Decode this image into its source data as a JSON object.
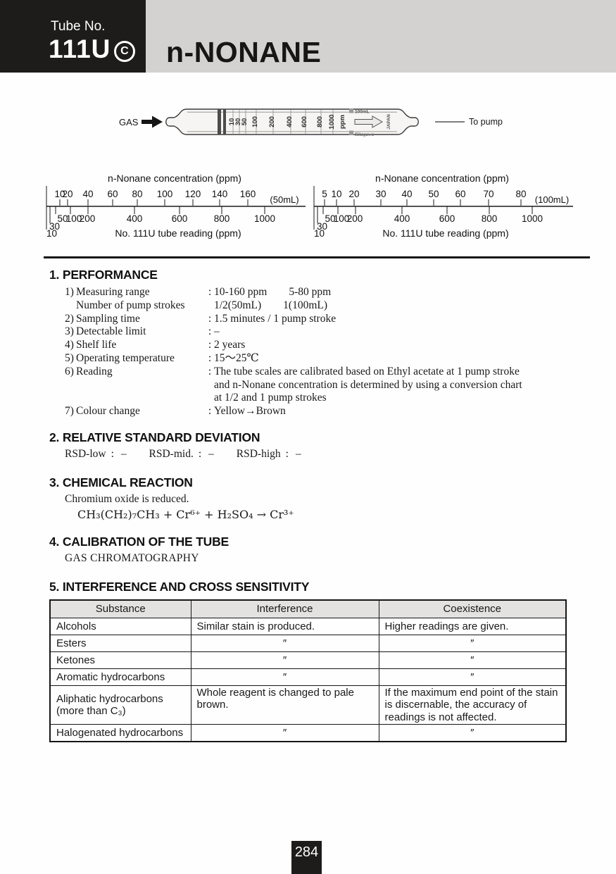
{
  "colors": {
    "header_band": "#d4d2d0",
    "black_box": "#1d1c1b",
    "table_header_bg": "#e3e2e0",
    "ink": "#1a1a1a"
  },
  "header": {
    "tube_label": "Tube No.",
    "tube_number": "111U",
    "registered_mark": "C",
    "title": "n-NONANE"
  },
  "tube_diagram": {
    "gas_label": "GAS",
    "to_pump_label": "To pump",
    "scale_marks": [
      [
        "10",
        176
      ],
      [
        "30",
        185
      ],
      [
        "50",
        194
      ],
      [
        "100",
        209
      ],
      [
        "200",
        233
      ],
      [
        "400",
        258
      ],
      [
        "600",
        279
      ],
      [
        "800",
        301
      ],
      [
        "1000",
        318
      ]
    ],
    "scale_unit": [
      "ppm",
      333
    ],
    "volume_text": "100mL",
    "country_text": "JAPAN",
    "brand_text": "Kitagawa"
  },
  "conversion_charts": [
    {
      "title": "n-Nonane concentration (ppm)",
      "volume_label": "(50mL)",
      "bottom_title": "No. 111U tube reading (ppm)",
      "top_ticks": [
        [
          "10",
          27
        ],
        [
          "20",
          38
        ],
        [
          "40",
          67
        ],
        [
          "60",
          102
        ],
        [
          "80",
          137
        ],
        [
          "100",
          176
        ],
        [
          "120",
          216
        ],
        [
          "140",
          254
        ],
        [
          "160",
          294
        ]
      ],
      "bottom_ticks": [
        [
          "10",
          8,
          "low",
          8
        ],
        [
          "30",
          13,
          "mid",
          12
        ],
        [
          "50",
          21,
          "main",
          31
        ],
        [
          "100",
          42,
          "main",
          47
        ],
        [
          "200",
          67,
          "main",
          66
        ],
        [
          "400",
          133,
          "main",
          133
        ],
        [
          "600",
          197,
          "main",
          197
        ],
        [
          "800",
          257,
          "main",
          257
        ],
        [
          "1000",
          318,
          "main",
          318
        ]
      ]
    },
    {
      "title": "n-Nonane concentration (ppm)",
      "volume_label": "(100mL)",
      "bottom_title": "No. 111U tube reading (ppm)",
      "top_ticks": [
        [
          "5",
          23
        ],
        [
          "10",
          40
        ],
        [
          "20",
          65
        ],
        [
          "30",
          103
        ],
        [
          "40",
          140
        ],
        [
          "50",
          178
        ],
        [
          "60",
          216
        ],
        [
          "70",
          256
        ],
        [
          "80",
          302
        ]
      ],
      "bottom_ticks": [
        [
          "10",
          8,
          "low",
          8
        ],
        [
          "30",
          13,
          "mid",
          12
        ],
        [
          "50",
          21,
          "main",
          31
        ],
        [
          "100",
          42,
          "main",
          47
        ],
        [
          "200",
          67,
          "main",
          66
        ],
        [
          "400",
          133,
          "main",
          133
        ],
        [
          "600",
          197,
          "main",
          197
        ],
        [
          "800",
          257,
          "main",
          257
        ],
        [
          "1000",
          318,
          "main",
          318
        ]
      ]
    }
  ],
  "performance": {
    "heading": "1. PERFORMANCE",
    "rows": [
      {
        "num": "1)",
        "label": "Measuring range",
        "colon": ":",
        "value": "10-160 ppm  5-80 ppm"
      },
      {
        "num": "",
        "label": "Number of pump strokes",
        "colon": "",
        "value": "1/2(50mL)  1(100mL)"
      },
      {
        "num": "2)",
        "label": "Sampling time",
        "colon": ":",
        "value": "1.5 minutes / 1 pump stroke"
      },
      {
        "num": "3)",
        "label": "Detectable limit",
        "colon": ":",
        "value": "–"
      },
      {
        "num": "4)",
        "label": "Shelf life",
        "colon": ":",
        "value": "2 years"
      },
      {
        "num": "5)",
        "label": "Operating temperature",
        "colon": ":",
        "value": "15～25℃"
      },
      {
        "num": "6)",
        "label": "Reading",
        "colon": ":",
        "value": "The tube scales are calibrated based on Ethyl acetate at 1 pump stroke\nand n-Nonane concentration is determined by using a conversion chart\nat 1/2 and 1 pump strokes"
      },
      {
        "num": "7)",
        "label": "Colour change",
        "colon": ":",
        "value": "Yellow→Brown"
      }
    ]
  },
  "rsd": {
    "heading": "2. RELATIVE STANDARD DEVIATION",
    "sep": ":",
    "items": [
      {
        "label": "RSD-low",
        "value": "–"
      },
      {
        "label": "RSD-mid.",
        "value": "–"
      },
      {
        "label": "RSD-high",
        "value": "–"
      }
    ]
  },
  "chemical_reaction": {
    "heading": "3. CHEMICAL REACTION",
    "description": "Chromium oxide is reduced.",
    "equation": "CH₃(CH₂)₇CH₃ + Cr⁶⁺ + H₂SO₄ → Cr³⁺"
  },
  "calibration": {
    "heading": "4. CALIBRATION OF THE TUBE",
    "method": "GAS CHROMATOGRAPHY"
  },
  "interference": {
    "heading": "5. INTERFERENCE AND CROSS SENSITIVITY",
    "columns": [
      "Substance",
      "Interference",
      "Coexistence"
    ],
    "rows": [
      [
        "Alcohols",
        "Similar stain is produced.",
        "Higher readings are given."
      ],
      [
        "Esters",
        "″",
        "″"
      ],
      [
        "Ketones",
        "″",
        "″"
      ],
      [
        "Aromatic hydrocarbons",
        "″",
        "″"
      ],
      [
        "Aliphatic hydrocarbons\n(more than C₃)",
        "Whole reagent is changed to pale brown.",
        "If the maximum end point of the stain is discernable, the accuracy of readings is not affected."
      ],
      [
        "Halogenated hydrocarbons",
        "″",
        "″"
      ]
    ]
  },
  "footer": {
    "page_number": "284"
  }
}
